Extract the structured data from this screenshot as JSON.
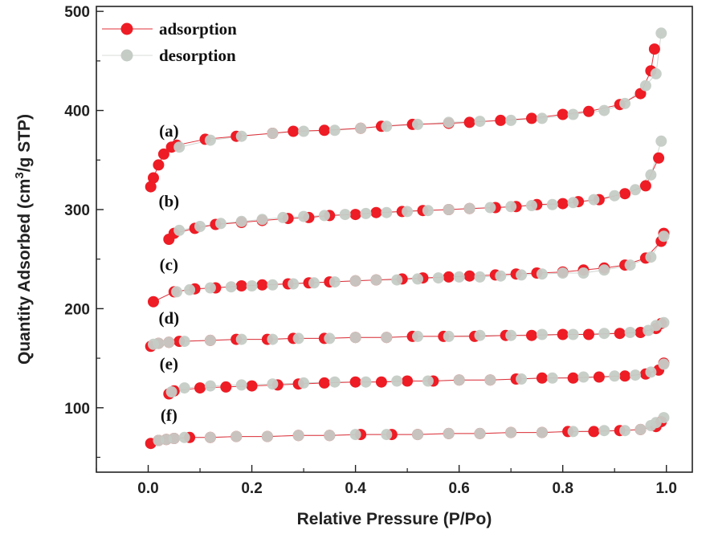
{
  "chart_data": {
    "type": "scatter",
    "xlabel": "Relative Pressure (P/Po)",
    "ylabel_main": "Quantity Adsorbed (cm",
    "ylabel_sup": "3",
    "ylabel_end": "/g STP)",
    "xlim": [
      -0.1,
      1.05
    ],
    "ylim": [
      35,
      505
    ],
    "xticks": [
      0.0,
      0.2,
      0.4,
      0.6,
      0.8,
      1.0
    ],
    "xtick_labels": [
      "0.0",
      "0.2",
      "0.4",
      "0.6",
      "0.8",
      "1.0"
    ],
    "yticks": [
      100,
      200,
      300,
      400,
      500
    ],
    "ytick_labels": [
      "100",
      "200",
      "300",
      "400",
      "500"
    ],
    "legend_position": "top-left",
    "grid": false,
    "colors": {
      "adsorption": "#ee1c25",
      "desorption": "#c5ccc6",
      "line": "#e0303a"
    },
    "legend": [
      {
        "key": "adsorption",
        "label": "adsorption"
      },
      {
        "key": "desorption",
        "label": "desorption"
      }
    ],
    "samples": [
      {
        "label": "(a)",
        "adsorption": {
          "x": [
            0.005,
            0.01,
            0.02,
            0.03,
            0.045,
            0.055,
            0.11,
            0.17,
            0.24,
            0.28,
            0.34,
            0.41,
            0.45,
            0.51,
            0.58,
            0.62,
            0.68,
            0.74,
            0.8,
            0.85,
            0.91,
            0.95,
            0.97,
            0.977
          ],
          "y": [
            323,
            332,
            345,
            356,
            363,
            365,
            371,
            374,
            377,
            379,
            380,
            382,
            384,
            386,
            387,
            388,
            390,
            392,
            396,
            399,
            406,
            417,
            440,
            462
          ]
        },
        "desorption": {
          "x": [
            0.99,
            0.98,
            0.96,
            0.92,
            0.88,
            0.82,
            0.76,
            0.7,
            0.64,
            0.58,
            0.52,
            0.46,
            0.41,
            0.36,
            0.3,
            0.24,
            0.18,
            0.12,
            0.06
          ],
          "y": [
            478,
            437,
            425,
            407,
            400,
            396,
            392,
            390,
            389,
            388,
            386,
            384,
            382,
            380,
            379,
            377,
            374,
            370,
            363
          ]
        }
      },
      {
        "label": "(b)",
        "adsorption": {
          "x": [
            0.04,
            0.05,
            0.09,
            0.13,
            0.18,
            0.22,
            0.27,
            0.31,
            0.35,
            0.4,
            0.44,
            0.49,
            0.53,
            0.58,
            0.62,
            0.67,
            0.71,
            0.75,
            0.8,
            0.83,
            0.87,
            0.92,
            0.96,
            0.985
          ],
          "y": [
            270,
            276,
            281,
            285,
            287,
            289,
            291,
            292,
            294,
            295,
            297,
            298,
            299,
            300,
            301,
            302,
            303,
            305,
            306,
            308,
            310,
            316,
            324,
            352
          ]
        },
        "desorption": {
          "x": [
            0.99,
            0.97,
            0.94,
            0.9,
            0.86,
            0.82,
            0.78,
            0.74,
            0.7,
            0.66,
            0.62,
            0.58,
            0.54,
            0.5,
            0.46,
            0.42,
            0.38,
            0.34,
            0.3,
            0.26,
            0.22,
            0.18,
            0.14,
            0.1,
            0.06
          ],
          "y": [
            369,
            335,
            320,
            314,
            310,
            307,
            305,
            304,
            303,
            302,
            301,
            300,
            299,
            298,
            297,
            296,
            295,
            294,
            293,
            292,
            290,
            288,
            286,
            283,
            279
          ]
        }
      },
      {
        "label": "(c)",
        "adsorption": {
          "x": [
            0.01,
            0.05,
            0.09,
            0.13,
            0.18,
            0.22,
            0.27,
            0.31,
            0.35,
            0.4,
            0.44,
            0.49,
            0.53,
            0.58,
            0.62,
            0.67,
            0.71,
            0.75,
            0.8,
            0.84,
            0.88,
            0.92,
            0.96,
            0.99,
            0.995
          ],
          "y": [
            207,
            217,
            220,
            221,
            223,
            224,
            225,
            226,
            227,
            228,
            229,
            230,
            231,
            232,
            233,
            234,
            235,
            236,
            237,
            239,
            241,
            244,
            251,
            268,
            276
          ]
        },
        "desorption": {
          "x": [
            0.995,
            0.97,
            0.93,
            0.88,
            0.84,
            0.8,
            0.76,
            0.72,
            0.68,
            0.64,
            0.6,
            0.56,
            0.52,
            0.48,
            0.44,
            0.4,
            0.36,
            0.32,
            0.28,
            0.24,
            0.2,
            0.16,
            0.12,
            0.08,
            0.055
          ],
          "y": [
            273,
            252,
            244,
            239,
            236,
            236,
            235,
            234,
            233,
            232,
            232,
            231,
            230,
            229,
            229,
            228,
            227,
            226,
            225,
            224,
            223,
            222,
            221,
            219,
            217
          ]
        }
      },
      {
        "label": "(d)",
        "adsorption": {
          "x": [
            0.005,
            0.02,
            0.04,
            0.06,
            0.12,
            0.17,
            0.23,
            0.28,
            0.34,
            0.4,
            0.46,
            0.51,
            0.57,
            0.63,
            0.69,
            0.74,
            0.8,
            0.85,
            0.91,
            0.95,
            0.98,
            0.99
          ],
          "y": [
            162,
            165,
            166,
            167,
            168,
            169,
            169,
            170,
            170,
            171,
            171,
            172,
            172,
            172,
            173,
            173,
            174,
            174,
            175,
            176,
            180,
            185
          ]
        },
        "desorption": {
          "x": [
            0.995,
            0.98,
            0.965,
            0.93,
            0.88,
            0.82,
            0.76,
            0.7,
            0.64,
            0.58,
            0.52,
            0.46,
            0.4,
            0.35,
            0.29,
            0.24,
            0.18,
            0.12,
            0.07,
            0.04,
            0.02,
            0.01
          ],
          "y": [
            186,
            183,
            178,
            176,
            175,
            174,
            174,
            173,
            173,
            172,
            172,
            171,
            171,
            170,
            170,
            169,
            169,
            168,
            167,
            166,
            165,
            164
          ]
        }
      },
      {
        "label": "(e)",
        "adsorption": {
          "x": [
            0.04,
            0.05,
            0.1,
            0.15,
            0.2,
            0.25,
            0.29,
            0.34,
            0.4,
            0.45,
            0.5,
            0.55,
            0.6,
            0.66,
            0.71,
            0.76,
            0.82,
            0.87,
            0.92,
            0.96,
            0.985,
            0.995
          ],
          "y": [
            114,
            117,
            120,
            121,
            122,
            123,
            124,
            125,
            126,
            126,
            127,
            127,
            128,
            128,
            129,
            130,
            130,
            131,
            132,
            134,
            138,
            145
          ]
        },
        "desorption": {
          "x": [
            0.995,
            0.97,
            0.94,
            0.9,
            0.84,
            0.78,
            0.72,
            0.66,
            0.6,
            0.54,
            0.48,
            0.42,
            0.36,
            0.3,
            0.24,
            0.18,
            0.12,
            0.07,
            0.045
          ],
          "y": [
            144,
            136,
            133,
            132,
            131,
            130,
            129,
            128,
            128,
            127,
            127,
            126,
            126,
            125,
            124,
            123,
            122,
            120,
            116
          ]
        }
      },
      {
        "label": "(f)",
        "adsorption": {
          "x": [
            0.005,
            0.02,
            0.035,
            0.05,
            0.08,
            0.12,
            0.17,
            0.23,
            0.29,
            0.35,
            0.41,
            0.47,
            0.52,
            0.58,
            0.64,
            0.7,
            0.76,
            0.81,
            0.86,
            0.91,
            0.95,
            0.98,
            0.99
          ],
          "y": [
            64,
            67,
            68,
            69,
            70,
            70,
            71,
            71,
            72,
            72,
            73,
            73,
            73,
            74,
            74,
            75,
            75,
            76,
            76,
            77,
            78,
            81,
            86
          ]
        },
        "desorption": {
          "x": [
            0.995,
            0.98,
            0.97,
            0.95,
            0.92,
            0.88,
            0.82,
            0.76,
            0.7,
            0.64,
            0.58,
            0.52,
            0.46,
            0.4,
            0.35,
            0.29,
            0.23,
            0.17,
            0.12,
            0.07,
            0.05,
            0.035,
            0.02
          ],
          "y": [
            90,
            85,
            82,
            78,
            77,
            77,
            76,
            75,
            75,
            74,
            74,
            73,
            73,
            73,
            72,
            72,
            71,
            71,
            70,
            70,
            69,
            68,
            67
          ]
        }
      }
    ]
  }
}
